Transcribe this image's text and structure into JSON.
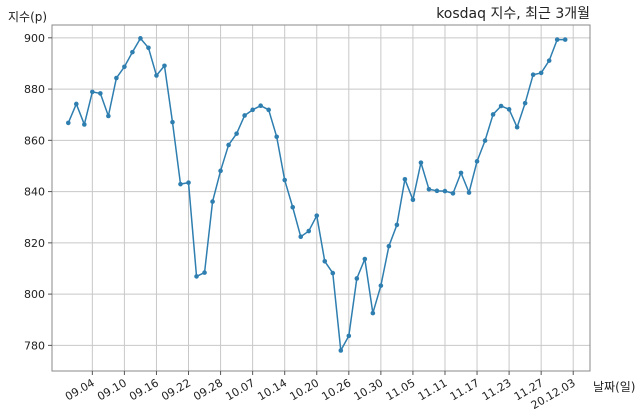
{
  "chart_data": {
    "type": "line",
    "title": "kosdaq 지수, 최근 3개월",
    "xlabel": "날짜(일)",
    "ylabel": "지수(p)",
    "ylim": [
      770,
      905
    ],
    "yticks": [
      780,
      800,
      820,
      840,
      860,
      880,
      900
    ],
    "grid": true,
    "xtick_labels": [
      "09.04",
      "09.10",
      "09.16",
      "09.22",
      "09.28",
      "10.07",
      "10.14",
      "10.20",
      "10.26",
      "10.30",
      "11.05",
      "11.11",
      "11.17",
      "11.23",
      "11.27",
      "20.12.03"
    ],
    "xtick_index": [
      3,
      7,
      11,
      15,
      19,
      23,
      27,
      31,
      35,
      39,
      43,
      47,
      51,
      55,
      59,
      63
    ],
    "color": "#2e7eb0",
    "series": [
      {
        "values": [
          866.8,
          874.2,
          866.2,
          878.9,
          878.3,
          869.5,
          884.3,
          888.7,
          894.4,
          899.8,
          896.1,
          885.3,
          889.1,
          867.1,
          842.9,
          843.5,
          806.9,
          808.4,
          836.1,
          848.1,
          858.2,
          862.6,
          869.7,
          871.9,
          873.5,
          871.9,
          861.4,
          844.5,
          833.9,
          822.4,
          824.6,
          830.6,
          812.8,
          808.2,
          778.0,
          783.7,
          806.1,
          813.7,
          792.6,
          803.3,
          818.7,
          827.0,
          844.8,
          836.8,
          851.3,
          840.9,
          840.3,
          840.2,
          839.3,
          847.3,
          839.6,
          851.8,
          859.9,
          870.1,
          873.4,
          872.1,
          865.1,
          874.5,
          885.6,
          886.3,
          891.1,
          899.3,
          899.3
        ]
      }
    ]
  }
}
